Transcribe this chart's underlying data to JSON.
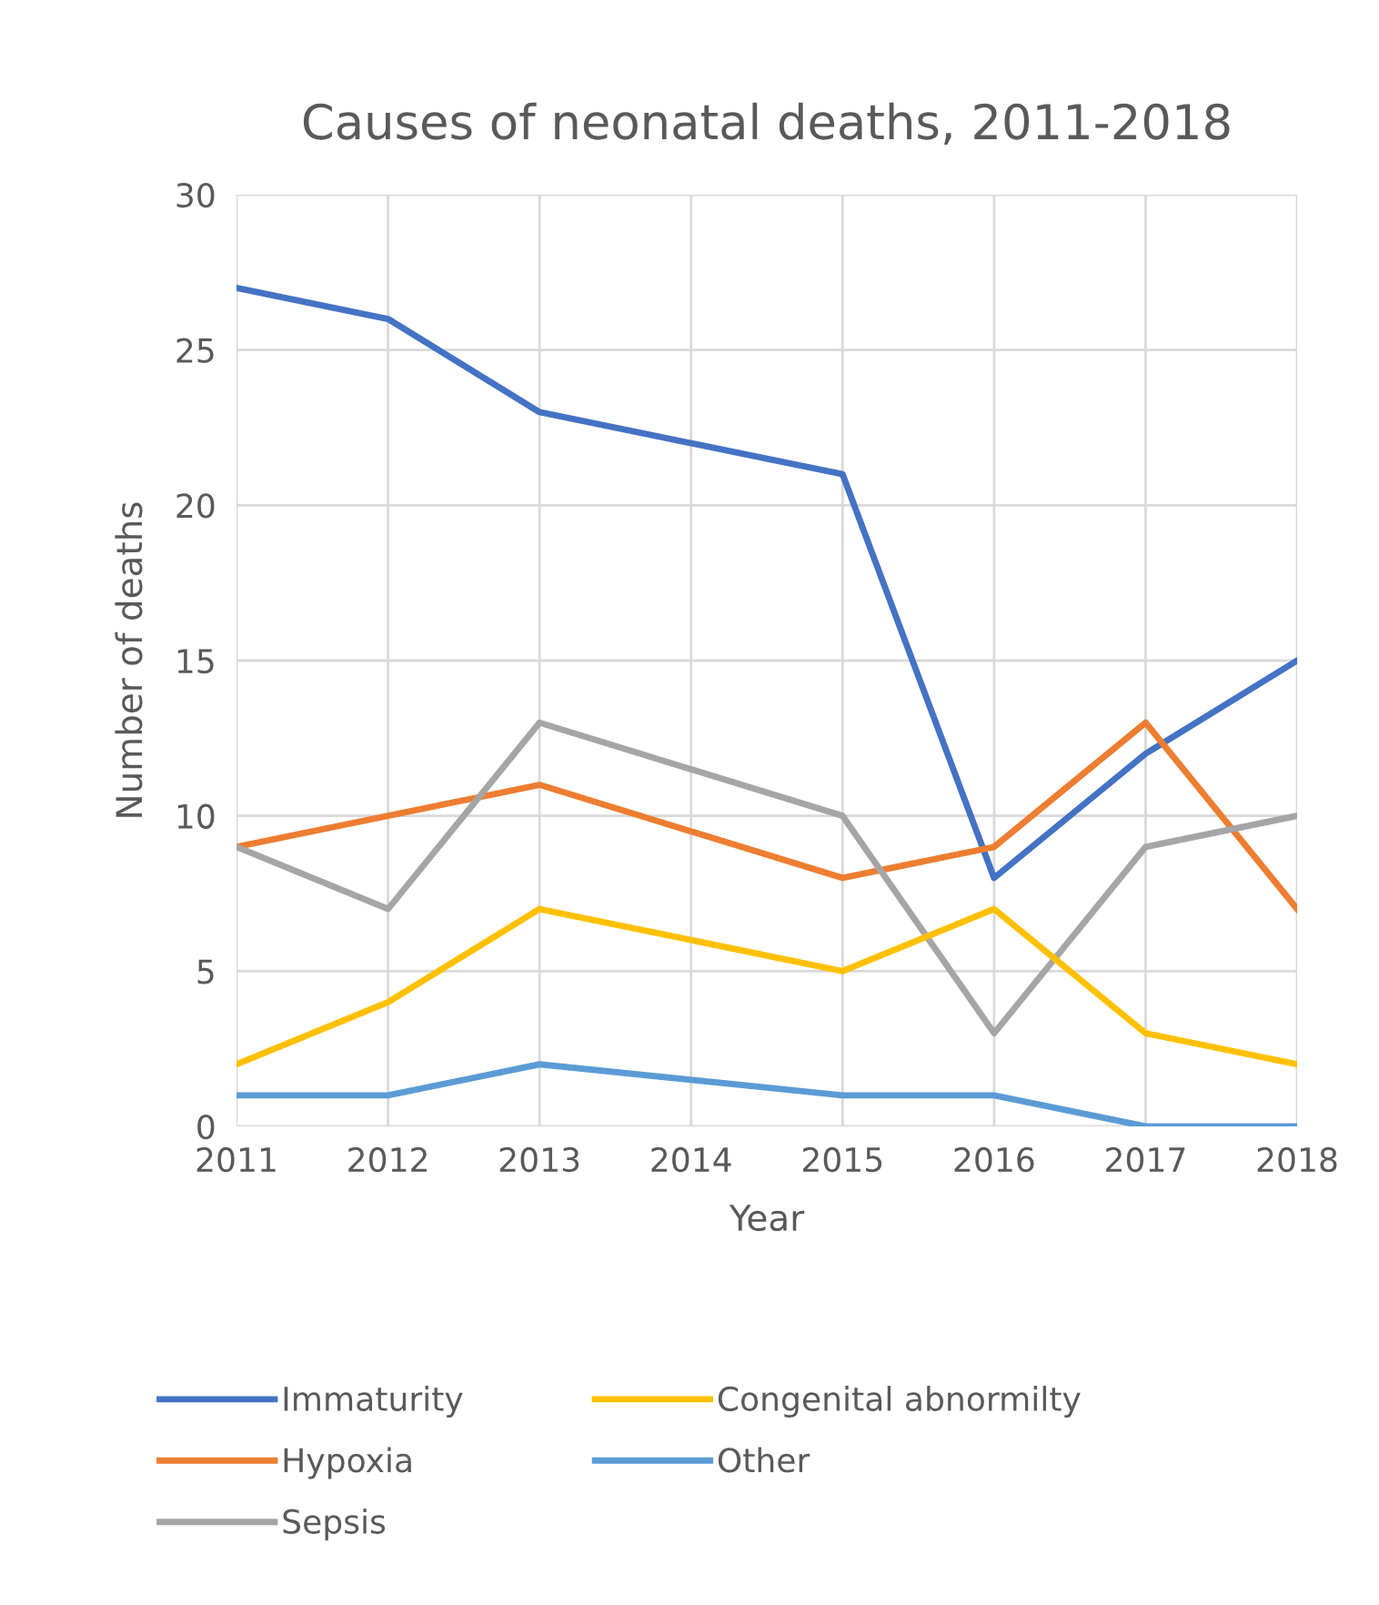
{
  "chart_data": {
    "type": "line",
    "title": "Causes of neonatal deaths, 2011-2018",
    "xlabel": "Year",
    "ylabel": "Number of deaths",
    "x": [
      2011,
      2012,
      2013,
      2015,
      2016,
      2017,
      2018
    ],
    "series": [
      {
        "name": "Immaturity",
        "color": "#4472c4",
        "values": [
          27,
          26,
          23,
          21,
          8,
          12,
          15
        ]
      },
      {
        "name": "Hypoxia",
        "color": "#ed7d31",
        "values": [
          9,
          10,
          11,
          8,
          9,
          13,
          7
        ]
      },
      {
        "name": "Sepsis",
        "color": "#a5a5a5",
        "values": [
          9,
          7,
          13,
          10,
          3,
          9,
          10
        ]
      },
      {
        "name": "Congenital abnormilty",
        "color": "#ffc000",
        "values": [
          2,
          4,
          7,
          5,
          7,
          3,
          2
        ]
      },
      {
        "name": "Other",
        "color": "#5b9bd5",
        "values": [
          1,
          1,
          2,
          1,
          1,
          0,
          0
        ]
      }
    ],
    "xlim": [
      2011,
      2018
    ],
    "xticks": [
      2011,
      2012,
      2013,
      2014,
      2015,
      2016,
      2017,
      2018
    ],
    "ylim": [
      0,
      30
    ],
    "yticks": [
      0,
      5,
      10,
      15,
      20,
      25,
      30
    ],
    "grid": true,
    "legend": "bottom",
    "marker": "none",
    "line_style": "solid"
  }
}
